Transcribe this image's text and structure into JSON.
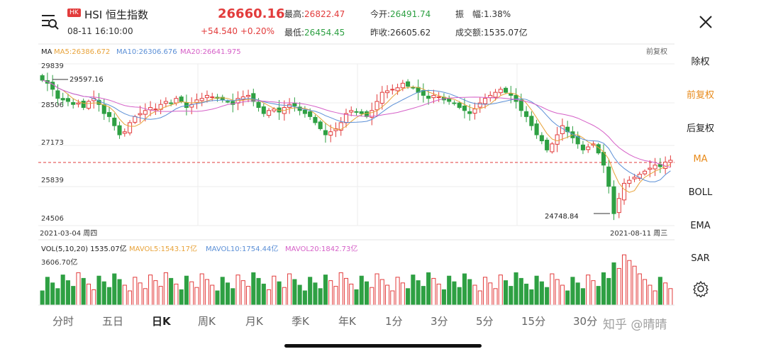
{
  "header": {
    "market_badge": "HK",
    "name": "HSI 恒生指数",
    "datetime": "08-11 16:10:00",
    "price": "26660.16",
    "change": "+54.540",
    "change_pct": "+0.20%",
    "high_label": "最高:",
    "high": "26822.47",
    "low_label": "最低:",
    "low": "26454.45",
    "open_label": "今开:",
    "open": "26491.74",
    "prev_label": "昨收:",
    "prev": "26605.62",
    "amp_label": "振　幅:",
    "amp": "1.38%",
    "turnover_label": "成交额:",
    "turnover": "1535.07亿"
  },
  "ma_bar": {
    "label": "MA",
    "ma5": "MA5:26386.672",
    "ma10": "MA10:26306.676",
    "ma20": "MA20:26641.975",
    "adjust": "前复权"
  },
  "price_axis": {
    "p1": "29839",
    "p2": "28506",
    "p3": "27173",
    "p4": "25839",
    "p5": "24506"
  },
  "annotations": {
    "high": "29597.16",
    "low": "24748.84",
    "start_date": "2021-03-04 周四",
    "end_date": "2021-08-11 周三"
  },
  "vol_bar": {
    "label": "VOL(5,10,20) 1535.07亿",
    "mavol5": "MAVOL5:1543.17亿",
    "mavol10": "MAVOL10:1754.44亿",
    "mavol20": "MAVOL20:1842.73亿",
    "max": "3606.70亿"
  },
  "right_menu": [
    "除权",
    "前复权",
    "后复权",
    "MA",
    "BOLL",
    "EMA",
    "SAR"
  ],
  "tabs": [
    "分时",
    "五日",
    "日K",
    "周K",
    "月K",
    "季K",
    "年K",
    "1分",
    "3分",
    "5分",
    "15分",
    "30分"
  ],
  "watermark": "知乎 @晴晴",
  "colors": {
    "up": "#e23b3b",
    "down": "#2ea043",
    "ma5": "#e8a33a",
    "ma10": "#5b8fd6",
    "ma20": "#d55fc7"
  },
  "chart_data": {
    "type": "candlestick",
    "ylim": [
      24506,
      29839
    ],
    "closes": [
      29300,
      29200,
      29000,
      28700,
      28650,
      28600,
      28500,
      28550,
      28400,
      28600,
      28700,
      28500,
      28200,
      28100,
      27800,
      27500,
      27600,
      27900,
      28100,
      28200,
      28300,
      28400,
      28350,
      28500,
      28600,
      28550,
      28700,
      28600,
      28400,
      28500,
      28650,
      28700,
      28800,
      28750,
      28700,
      28650,
      28600,
      28500,
      28700,
      28750,
      28800,
      28600,
      28400,
      28200,
      28300,
      28350,
      28250,
      28400,
      28500,
      28450,
      28300,
      28200,
      28100,
      27900,
      27700,
      27500,
      27600,
      27700,
      27900,
      28200,
      28300,
      28250,
      28200,
      28100,
      28300,
      28600,
      28900,
      28950,
      29000,
      29050,
      29200,
      29100,
      29050,
      28900,
      28800,
      28700,
      28800,
      28750,
      28650,
      28600,
      28550,
      28400,
      28300,
      28200,
      28350,
      28550,
      28700,
      28800,
      28900,
      29000,
      28900,
      28800,
      28600,
      28300,
      28100,
      27800,
      27500,
      27300,
      27000,
      27200,
      27500,
      27800,
      27600,
      27400,
      27200,
      27000,
      27100,
      27200,
      26900,
      26500,
      25800,
      24900,
      25400,
      25900,
      26000,
      26100,
      26200,
      26300,
      26400,
      26500,
      26450,
      26600,
      26660
    ],
    "volume_max": "3606.70亿"
  }
}
